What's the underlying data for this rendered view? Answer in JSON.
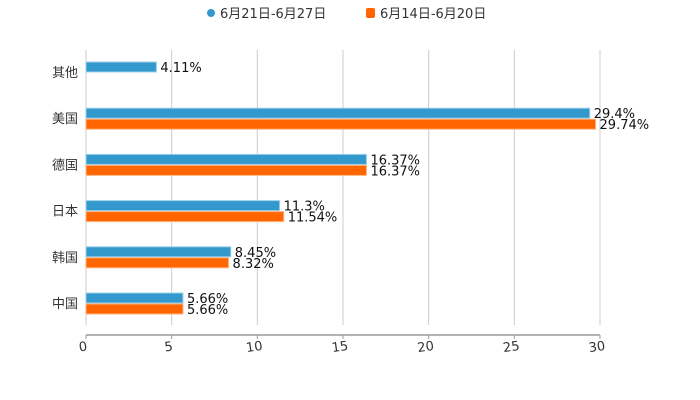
{
  "chart_data": {
    "type": "bar",
    "orientation": "horizontal",
    "categories": [
      "其他",
      "美国",
      "德国",
      "日本",
      "韩国",
      "中国"
    ],
    "series": [
      {
        "name": "6月21日-6月27日",
        "color": "#3399cc",
        "values": [
          4.11,
          29.4,
          16.37,
          11.3,
          8.45,
          5.66
        ],
        "labels": [
          "4.11%",
          "29.4%",
          "16.37%",
          "11.3%",
          "8.45%",
          "5.66%"
        ]
      },
      {
        "name": "6月14日-6月20日",
        "color": "#ff6600",
        "values": [
          null,
          29.74,
          16.37,
          11.54,
          8.32,
          5.66
        ],
        "labels": [
          "",
          "29.74%",
          "16.37%",
          "11.54%",
          "8.32%",
          "5.66%"
        ]
      }
    ],
    "xlim": [
      0,
      30
    ],
    "xticks": [
      "0",
      "5",
      "10",
      "15",
      "20",
      "25",
      "30"
    ],
    "grid": true,
    "legend": "top-center",
    "title": "",
    "xlabel": "",
    "ylabel": ""
  }
}
